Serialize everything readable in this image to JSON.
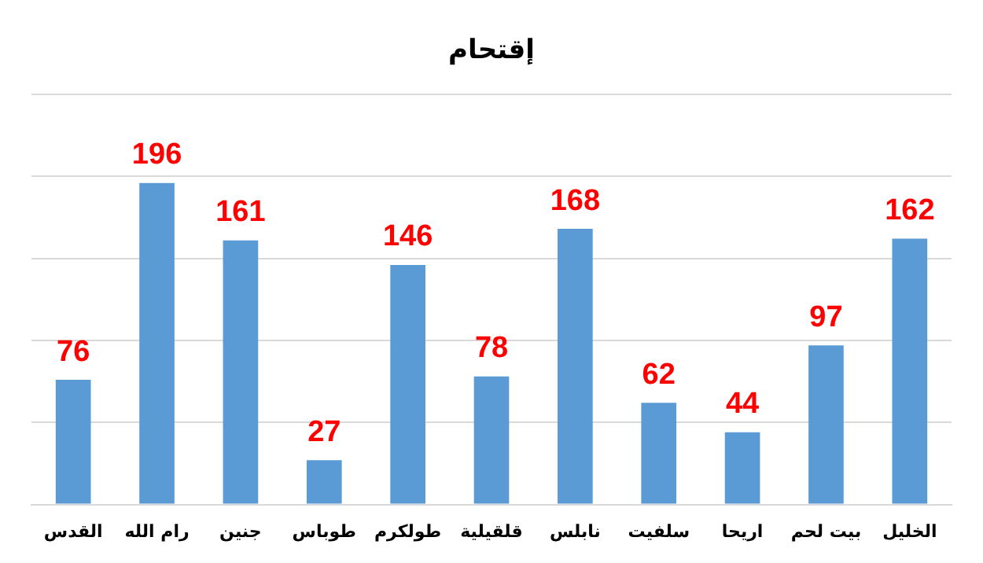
{
  "chart_data": {
    "type": "bar",
    "title": "إقتحام",
    "categories": [
      "القدس",
      "رام الله",
      "جنين",
      "طوباس",
      "طولكرم",
      "قلقيلية",
      "نابلس",
      "سلفيت",
      "اريحا",
      "بيت لحم",
      "الخليل"
    ],
    "values": [
      76,
      196,
      161,
      27,
      146,
      78,
      168,
      62,
      44,
      97,
      162
    ],
    "color": "#5b9bd5",
    "ylim": [
      0,
      250
    ],
    "yticks": [
      {
        "value": 0,
        "label": null
      },
      {
        "value": 50,
        "label": null
      },
      {
        "value": 100,
        "label": null
      },
      {
        "value": 150,
        "label": null
      },
      {
        "value": 200,
        "label": null
      },
      {
        "value": 250,
        "label": null
      }
    ],
    "tick_labels": "x",
    "grid": "y",
    "legend": false,
    "data_labels": true
  }
}
